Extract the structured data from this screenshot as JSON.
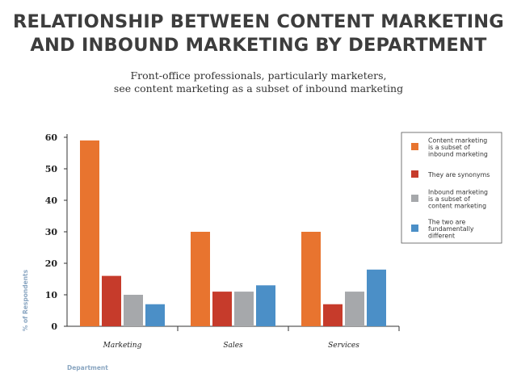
{
  "header": {
    "title_line1": "RELATIONSHIP BETWEEN CONTENT MARKETING",
    "title_line2": "AND INBOUND MARKETING BY DEPARTMENT",
    "subtitle_line1": "Front-office professionals, particularly marketers,",
    "subtitle_line2": "see content marketing as a subset of inbound marketing"
  },
  "chart_data": {
    "type": "bar",
    "title": "RELATIONSHIP BETWEEN CONTENT MARKETING AND INBOUND MARKETING BY DEPARTMENT",
    "subtitle": "Front-office professionals, particularly marketers, see content marketing as a subset of inbound marketing",
    "xlabel": "Department",
    "ylabel": "% of Respondents",
    "categories": [
      "Marketing",
      "Sales",
      "Services"
    ],
    "ylim": [
      0,
      60
    ],
    "yticks": [
      0,
      10,
      20,
      30,
      40,
      50,
      60
    ],
    "grid": false,
    "legend_position": "right",
    "series": [
      {
        "name": "Content marketing is a subset of inbound marketing",
        "legend_lines": [
          "Content marketing",
          "is a subset of",
          "inbound marketing"
        ],
        "color": "#e8742f",
        "values": [
          59,
          30,
          30
        ]
      },
      {
        "name": "They are synonyms",
        "legend_lines": [
          "They are synonyms"
        ],
        "color": "#c63b2b",
        "values": [
          16,
          11,
          7
        ]
      },
      {
        "name": "Inbound marketing is a subset of content marketing",
        "legend_lines": [
          "Inbound marketing",
          "is a subset of",
          "content marketing"
        ],
        "color": "#a6a8ab",
        "values": [
          10,
          11,
          11
        ]
      },
      {
        "name": "The two are fundamentally different",
        "legend_lines": [
          "The two are",
          "fundamentally",
          "different"
        ],
        "color": "#4b8fc7",
        "values": [
          7,
          13,
          18
        ]
      }
    ]
  }
}
